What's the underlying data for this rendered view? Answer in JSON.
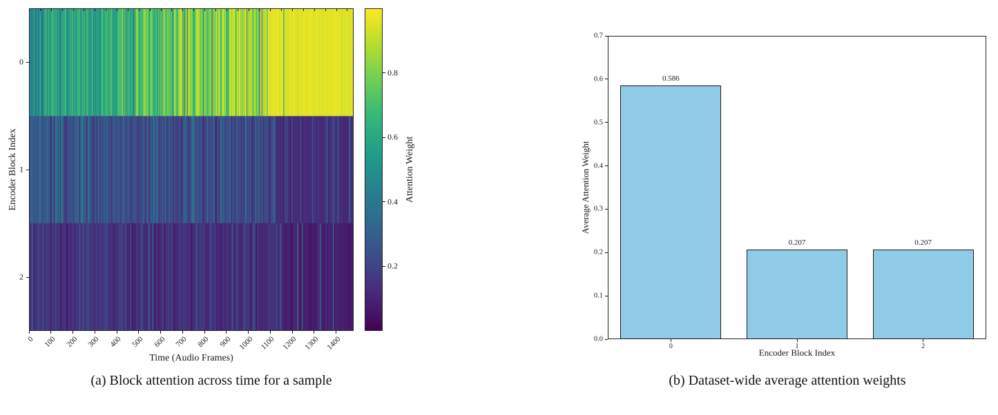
{
  "captions": {
    "a": "(a) Block attention across time for a sample",
    "b": "(b) Dataset-wide average attention weights"
  },
  "chart_data": [
    {
      "type": "heatmap",
      "title": "",
      "xlabel": "Time (Audio Frames)",
      "ylabel": "Encoder Block Index",
      "x_range": [
        0,
        1480
      ],
      "x_ticks": [
        "0",
        "100",
        "200",
        "300",
        "400",
        "500",
        "600",
        "700",
        "800",
        "900",
        "1000",
        "1100",
        "1200",
        "1300",
        "1400"
      ],
      "x_tick_values": [
        0,
        100,
        200,
        300,
        400,
        500,
        600,
        700,
        800,
        900,
        1000,
        1100,
        1200,
        1300,
        1400
      ],
      "y_ticks": [
        "0",
        "1",
        "2"
      ],
      "colormap": "viridis",
      "colorbar": {
        "label": "Attention Weight",
        "ticks": [
          "0.2",
          "0.4",
          "0.6",
          "0.8"
        ],
        "tick_values": [
          0.2,
          0.4,
          0.6,
          0.8
        ],
        "range": [
          0,
          1
        ]
      },
      "rows": [
        {
          "block": "0",
          "summary": "High attention ~0.4-0.9 with vertical striations, rising over time and saturating near 1.0 (bright yellow) after ~1100 frames",
          "base_start": 0.5,
          "base_end": 0.88,
          "noise": 0.18,
          "stripe_prob": 0.1,
          "stripe_boost": 0.12,
          "dark_streak_prob": 0.05,
          "dark_level": 0.32,
          "tail_start": 0.73,
          "tail_level": 0.96,
          "tail_noise": 0.04,
          "tail_streak_prob": 0.03,
          "tail_streak_level": 0.55
        },
        {
          "block": "1",
          "summary": "Low attention ~0.15-0.45 (dark blue) with frequent lighter blue striations, darker after ~1100 frames",
          "base_start": 0.26,
          "base_end": 0.2,
          "noise": 0.09,
          "stripe_prob": 0.16,
          "stripe_boost": 0.16,
          "dark_streak_prob": 0.06,
          "dark_level": 0.1,
          "tail_start": 0.76,
          "tail_level": 0.13,
          "tail_noise": 0.05,
          "tail_streak_prob": 0.05,
          "tail_streak_level": 0.32
        },
        {
          "block": "2",
          "summary": "Lowest attention ~0.08-0.33 (dark purple) with sparse blue striations, darkest after ~1150 frames with a few green streaks near 1200",
          "base_start": 0.15,
          "base_end": 0.13,
          "noise": 0.07,
          "stripe_prob": 0.1,
          "stripe_boost": 0.15,
          "dark_streak_prob": 0.05,
          "dark_level": 0.06,
          "tail_start": 0.78,
          "tail_level": 0.08,
          "tail_noise": 0.04,
          "tail_streak_prob": 0.03,
          "tail_streak_level": 0.5
        }
      ]
    },
    {
      "type": "bar",
      "title": "",
      "categories": [
        "0",
        "1",
        "2"
      ],
      "values": [
        0.586,
        0.207,
        0.207
      ],
      "bar_labels": [
        "0.586",
        "0.207",
        "0.207"
      ],
      "xlabel": "Encoder Block Index",
      "ylabel": "Average Attention Weight",
      "ylim": [
        0.0,
        0.7
      ],
      "y_ticks": [
        "0.0",
        "0.1",
        "0.2",
        "0.3",
        "0.4",
        "0.5",
        "0.6",
        "0.7"
      ],
      "y_tick_values": [
        0.0,
        0.1,
        0.2,
        0.3,
        0.4,
        0.5,
        0.6,
        0.7
      ],
      "bar_color": "#8fcae6",
      "bar_edge_color": "#1a1a1a",
      "bar_width_frac": 0.8,
      "grid": false,
      "legend": null
    }
  ]
}
